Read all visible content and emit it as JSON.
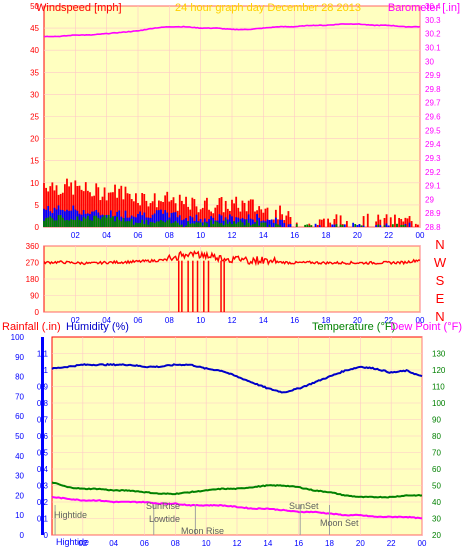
{
  "header": {
    "left_label": "Windspeed [mph]",
    "center_label": "24 hour graph day   December 28 2013",
    "right_label": "Barometer [.in]"
  },
  "compass": {
    "labels": [
      "N",
      "W",
      "S",
      "E",
      "N"
    ]
  },
  "bottom_header": {
    "rainfall_label": "Rainfall (.in)",
    "humidity_label": "Humidity (%)",
    "temperature_label": "Temperature (°F)",
    "dewpoint_label": "Dew Point (°F)"
  },
  "annotations": {
    "hightide_1": "Hightide",
    "hightide_2": "Hightide",
    "sunrise": "SunRise",
    "lowtide": "Lowtide",
    "moonrise": "Moon Rise",
    "sunset": "SunSet",
    "moonset": "Moon Set"
  },
  "colors": {
    "background": "#ffffff",
    "plot_bg": "#ffffc0",
    "frame": "#ff0000",
    "header_text": "#ffd000",
    "windspeed": "#ff0000",
    "gust_fill": "#0000ff",
    "avg_fill": "#008000",
    "barometer": "#ff00ff",
    "direction": "#ff0000",
    "humidity": "#0000c8",
    "temperature": "#008000",
    "dewpoint": "#ff00ff",
    "rainfall_axis": "#0000ff"
  },
  "chart_data": [
    {
      "type": "line",
      "name_left": "Windspeed [mph]",
      "name_right": "Barometer [.in]",
      "x_ticks": [
        "02",
        "04",
        "06",
        "08",
        "10",
        "12",
        "14",
        "16",
        "18",
        "20",
        "22",
        "00"
      ],
      "ylim_left": [
        0,
        50
      ],
      "yticks_left": [
        0,
        5,
        10,
        15,
        20,
        25,
        30,
        35,
        40,
        45,
        50
      ],
      "ylim_right": [
        28.8,
        30.4
      ],
      "yticks_right": [
        "28.8",
        "28.9",
        "29",
        "29.1",
        "29.2",
        "29.3",
        "29.4",
        "29.5",
        "29.6",
        "29.7",
        "29.8",
        "29.9",
        "30",
        "30.1",
        "30.2",
        "30.3",
        "30.4"
      ],
      "barometer_hourly": [
        30.18,
        30.18,
        30.19,
        30.19,
        30.2,
        30.21,
        30.22,
        30.24,
        30.25,
        30.25,
        30.24,
        30.24,
        30.23,
        30.23,
        30.24,
        30.25,
        30.25,
        30.26,
        30.26,
        30.27,
        30.27,
        30.26,
        30.26,
        30.25,
        30.25
      ],
      "windspeed_gust_hourly": [
        10,
        9,
        9,
        8,
        8,
        8,
        7,
        6,
        6,
        5,
        5,
        5,
        5,
        5,
        4,
        3,
        1,
        0,
        1,
        1,
        1,
        1,
        1,
        1,
        2
      ],
      "windspeed_mean_hourly": [
        4,
        4,
        4,
        3,
        3,
        3,
        3,
        3,
        3,
        2,
        2,
        2,
        2,
        2,
        2,
        1,
        0,
        0,
        0,
        0,
        0,
        0,
        0,
        0,
        0
      ],
      "windspeed_low_hourly": [
        2,
        2,
        2,
        2,
        2,
        2,
        1,
        1,
        1,
        1,
        1,
        1,
        1,
        1,
        1,
        0,
        0,
        0,
        0,
        0,
        0,
        0,
        0,
        0,
        0
      ]
    },
    {
      "type": "line",
      "name_left": "Wind direction",
      "x_ticks": [
        "02",
        "04",
        "06",
        "08",
        "10",
        "12",
        "14",
        "16",
        "18",
        "20",
        "22",
        "00"
      ],
      "ylim_left": [
        0,
        360
      ],
      "yticks_left": [
        0,
        90,
        180,
        270,
        360
      ],
      "direction_hourly": [
        270,
        272,
        268,
        265,
        270,
        272,
        275,
        280,
        285,
        320,
        310,
        300,
        290,
        285,
        280,
        272,
        268,
        270,
        268,
        268,
        268,
        268,
        269,
        270,
        285
      ]
    },
    {
      "type": "line",
      "x_ticks": [
        "02",
        "04",
        "06",
        "08",
        "10",
        "12",
        "14",
        "16",
        "18",
        "20",
        "22",
        "00"
      ],
      "humidity_ylim": [
        0,
        100
      ],
      "humidity_yticks": [
        0,
        10,
        20,
        30,
        40,
        50,
        60,
        70,
        80,
        90,
        100
      ],
      "rainfall_ylim": [
        0,
        1.2
      ],
      "rainfall_yticks": [
        "0",
        "0.1",
        "0.2",
        "0.3",
        "0.4",
        "0.5",
        "0.6",
        "0.7",
        "0.8",
        "0.9",
        "1",
        "1.1"
      ],
      "temp_ylim": [
        20,
        140
      ],
      "temp_yticks": [
        20,
        30,
        40,
        50,
        60,
        70,
        80,
        90,
        100,
        110,
        120,
        130
      ],
      "humidity_hourly": [
        84,
        85,
        86,
        86,
        86,
        86,
        85,
        85,
        86,
        86,
        84,
        83,
        80,
        77,
        74,
        72,
        74,
        77,
        80,
        83,
        85,
        84,
        82,
        83,
        80
      ],
      "temperature_hourly": [
        52,
        49,
        48,
        48,
        47,
        47,
        46,
        45,
        45,
        46,
        47,
        48,
        48,
        49,
        50,
        50,
        49,
        47,
        46,
        44,
        43,
        43,
        43,
        44,
        44
      ],
      "dewpoint_hourly": [
        43,
        42,
        41,
        41,
        40,
        40,
        40,
        39,
        39,
        38,
        38,
        38,
        37,
        36,
        36,
        35,
        34,
        34,
        33,
        32,
        32,
        31,
        31,
        31,
        30
      ]
    }
  ]
}
